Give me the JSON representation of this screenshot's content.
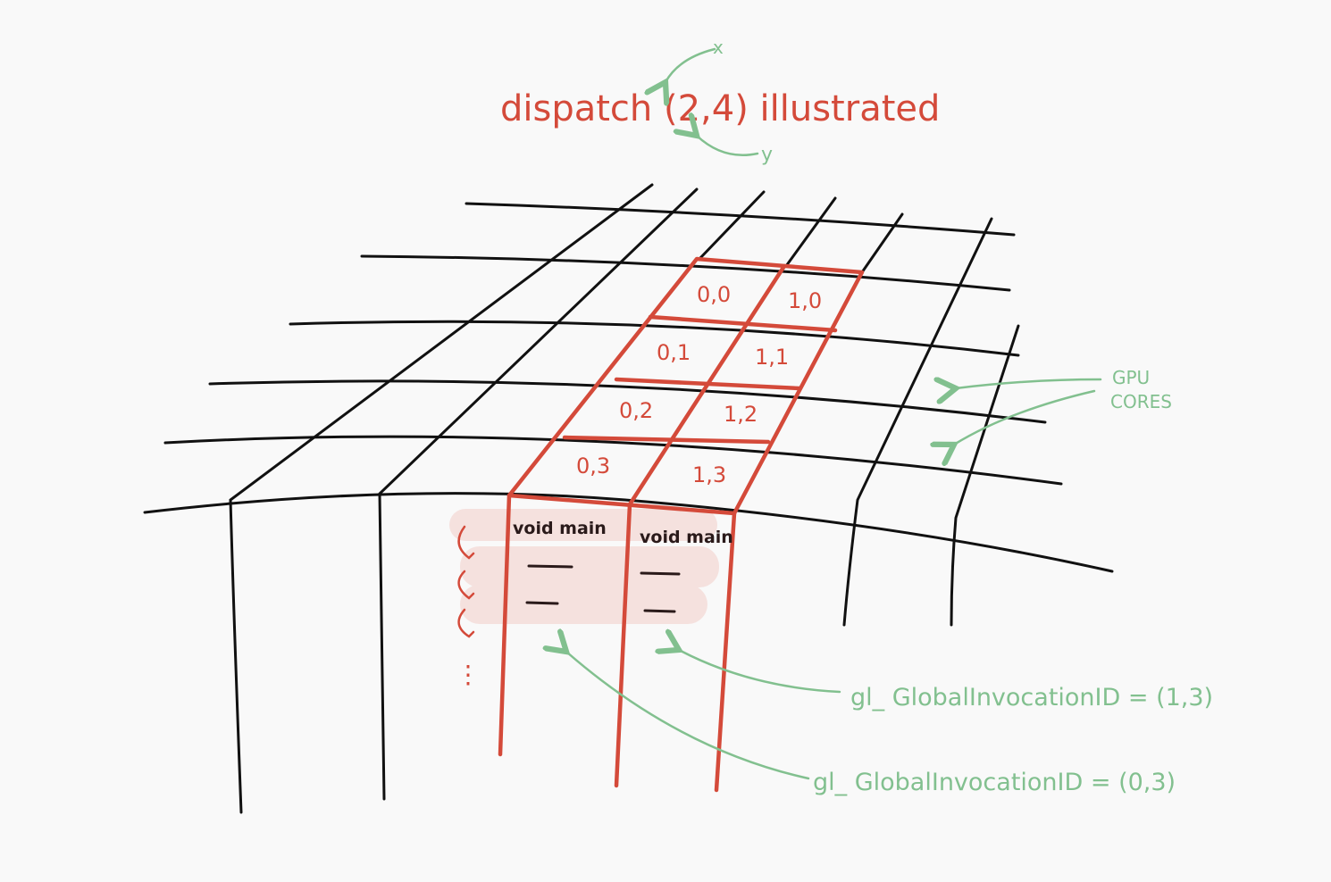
{
  "title": "dispatch (2,4) illustrated",
  "axis_hints": {
    "x": "x",
    "y": "y"
  },
  "gpu_cores_label": [
    "GPU",
    "CORES"
  ],
  "cells": [
    {
      "label": "0,0"
    },
    {
      "label": "1,0"
    },
    {
      "label": "0,1"
    },
    {
      "label": "1,1"
    },
    {
      "label": "0,2"
    },
    {
      "label": "1,2"
    },
    {
      "label": "0,3"
    },
    {
      "label": "1,3"
    }
  ],
  "code_columns": [
    {
      "header": "void main"
    },
    {
      "header": "void main"
    }
  ],
  "loop_ellipsis": "⋮",
  "annotations": {
    "invocation_1_3": "gl_ GlobalInvocationID = (1,3)",
    "invocation_0_3": "gl_ GlobalInvocationID = (0,3)"
  },
  "colors": {
    "ink": "#111111",
    "accent": "#d44a3a",
    "note": "#82c08f",
    "highlight": "#f5e1de"
  }
}
